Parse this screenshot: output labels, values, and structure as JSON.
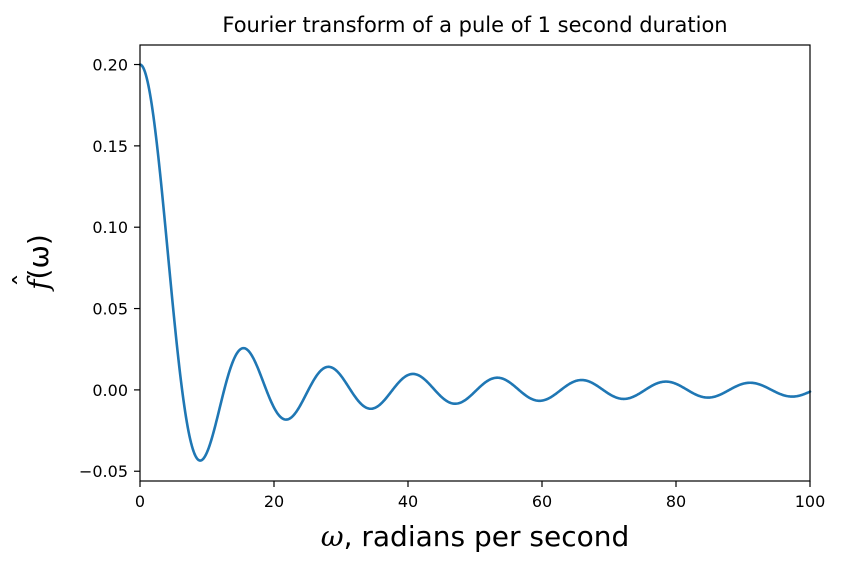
{
  "chart_data": {
    "type": "line",
    "title": "Fourier transform of a pule of 1 second duration",
    "xlabel": {
      "symbol": "ω",
      "text": ", radians per second"
    },
    "ylabel": {
      "hat": "ˆ",
      "symbol": "f",
      "arg": "(ω)"
    },
    "xlim": [
      0,
      100
    ],
    "ylim": [
      -0.056,
      0.212
    ],
    "xticks": [
      0,
      20,
      40,
      60,
      80,
      100
    ],
    "xtick_labels": [
      "0",
      "20",
      "40",
      "60",
      "80",
      "100"
    ],
    "yticks": [
      -0.05,
      0.0,
      0.05,
      0.1,
      0.15,
      0.2
    ],
    "ytick_labels": [
      "−0.05",
      "0.00",
      "0.05",
      "0.10",
      "0.15",
      "0.20"
    ],
    "grid": false,
    "series": [
      {
        "color": "#1f77b4",
        "function": "sin(w/2)/(5*(w/2))",
        "x_range": [
          0,
          100
        ],
        "samples": 800,
        "sampled_points": [
          [
            0,
            0.2
          ],
          [
            5,
            0.0479
          ],
          [
            9,
            -0.0434
          ],
          [
            15.4,
            0.0258
          ],
          [
            21.9,
            -0.0182
          ],
          [
            28.2,
            0.0141
          ],
          [
            34.5,
            -0.0115
          ],
          [
            40.8,
            0.0097
          ],
          [
            47.2,
            -0.0084
          ],
          [
            53.4,
            0.0074
          ],
          [
            59.7,
            -0.0067
          ],
          [
            66.0,
            0.0061
          ],
          [
            72.3,
            -0.0055
          ],
          [
            78.6,
            0.0051
          ],
          [
            84.9,
            -0.0047
          ],
          [
            91.2,
            0.0044
          ],
          [
            97.6,
            -0.0041
          ],
          [
            100,
            -0.001
          ]
        ]
      }
    ]
  }
}
